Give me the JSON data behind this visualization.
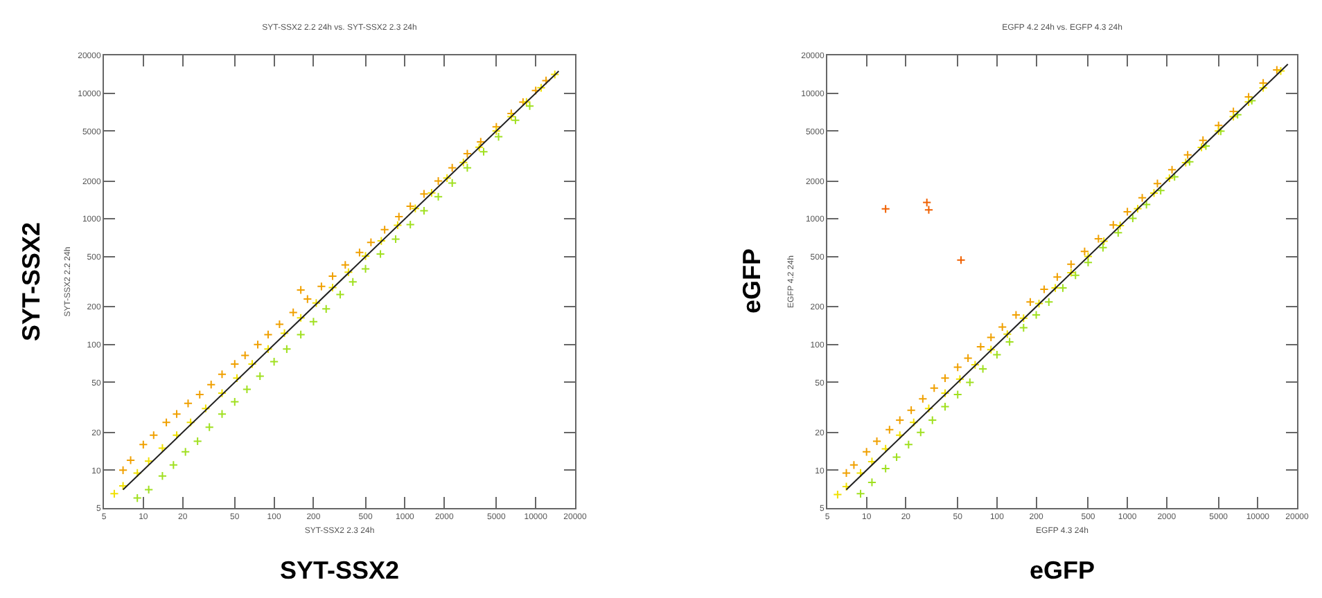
{
  "chart_data": [
    {
      "type": "scatter",
      "title": "SYT-SSX2 2.2 24h vs. SYT-SSX2 2.3 24h",
      "xlabel": "SYT-SSX2 2.3 24h",
      "ylabel": "SYT-SSX2 2.2 24h",
      "annotations": [
        "SYT-SSX2",
        "SYT-SSX2"
      ],
      "log": "xy",
      "grid": false,
      "marker": "cross",
      "xlim": [
        5,
        20000
      ],
      "ylim": [
        5,
        20000
      ],
      "xticks": [
        5,
        10,
        20,
        50,
        100,
        200,
        500,
        1000,
        2000,
        5000,
        10000,
        20000
      ],
      "yticks": [
        5,
        10,
        20,
        50,
        100,
        200,
        500,
        1000,
        2000,
        5000,
        10000,
        20000
      ],
      "series": [
        {
          "color": "#f0a000",
          "x": [
            7,
            8,
            10,
            12,
            15,
            18,
            22,
            27,
            33,
            40,
            50,
            60,
            75,
            90,
            110,
            140,
            160,
            180,
            230,
            280,
            350,
            450,
            550,
            700,
            900,
            1100,
            1400,
            1800,
            2300,
            3000,
            3800,
            5000,
            6500,
            8000,
            10000,
            12000
          ],
          "values": [
            10,
            12,
            16,
            19,
            24,
            28,
            34,
            40,
            48,
            58,
            70,
            82,
            100,
            120,
            145,
            180,
            272,
            230,
            290,
            350,
            430,
            540,
            650,
            820,
            1040,
            1260,
            1580,
            2000,
            2550,
            3300,
            4100,
            5400,
            6900,
            8500,
            10500,
            12600
          ]
        },
        {
          "color": "#f0e000",
          "x": [
            6,
            7,
            9,
            11,
            14,
            18,
            23,
            30,
            40,
            52,
            68,
            90,
            120,
            160,
            210,
            280,
            370,
            500,
            660,
            880,
            1200,
            1600,
            2100,
            2800,
            3700,
            5000,
            6500,
            8500,
            11000,
            14000
          ],
          "values": [
            6.5,
            7.5,
            9.5,
            11.8,
            15,
            19,
            24,
            31,
            41,
            54,
            70,
            92,
            123,
            163,
            214,
            284,
            376,
            506,
            668,
            890,
            1210,
            1610,
            2110,
            2810,
            3710,
            5010,
            6520,
            8520,
            11050,
            14100
          ]
        },
        {
          "color": "#a0e020",
          "x": [
            9,
            11,
            14,
            17,
            21,
            26,
            32,
            40,
            50,
            62,
            78,
            100,
            125,
            160,
            200,
            250,
            320,
            400,
            500,
            650,
            850,
            1100,
            1400,
            1800,
            2300,
            3000,
            4000,
            5200,
            7000,
            9000
          ],
          "values": [
            6,
            7,
            9,
            11,
            14,
            17,
            22,
            28,
            35,
            44,
            56,
            73,
            92,
            120,
            152,
            192,
            250,
            315,
            400,
            525,
            690,
            900,
            1160,
            1500,
            1930,
            2550,
            3420,
            4500,
            6100,
            7900
          ]
        },
        {
          "type": "line",
          "marker": "none",
          "color": "#202020",
          "x": [
            7,
            15000
          ],
          "values": [
            7,
            15000
          ]
        }
      ]
    },
    {
      "type": "scatter",
      "title": "EGFP 4.2 24h vs. EGFP 4.3 24h",
      "xlabel": "EGFP 4.3 24h",
      "ylabel": "EGFP 4.2 24h",
      "annotations": [
        "eGFP",
        "eGFP"
      ],
      "log": "xy",
      "grid": false,
      "marker": "cross",
      "xlim": [
        5,
        20000
      ],
      "ylim": [
        5,
        20000
      ],
      "xticks": [
        5,
        10,
        20,
        50,
        100,
        200,
        500,
        1000,
        2000,
        5000,
        10000,
        20000
      ],
      "yticks": [
        5,
        10,
        20,
        50,
        100,
        200,
        500,
        1000,
        2000,
        5000,
        10000,
        20000
      ],
      "series": [
        {
          "color": "#f0a000",
          "x": [
            7,
            8,
            10,
            12,
            15,
            18,
            22,
            27,
            33,
            40,
            50,
            60,
            75,
            90,
            110,
            140,
            180,
            230,
            290,
            370,
            470,
            600,
            780,
            1000,
            1300,
            1700,
            2200,
            2900,
            3800,
            5000,
            6500,
            8500,
            11000,
            14000
          ],
          "values": [
            9.5,
            11,
            14,
            17,
            21,
            25,
            30,
            37,
            45,
            54,
            66,
            78,
            96,
            114,
            138,
            172,
            218,
            275,
            345,
            435,
            550,
            695,
            895,
            1140,
            1470,
            1910,
            2460,
            3230,
            4220,
            5530,
            7160,
            9330,
            12050,
            15300
          ]
        },
        {
          "color": "#f06000",
          "x": [
            14,
            29,
            30,
            53
          ],
          "values": [
            1200,
            1350,
            1180,
            470
          ]
        },
        {
          "color": "#f0e000",
          "x": [
            6,
            7,
            9,
            11,
            14,
            18,
            23,
            30,
            40,
            52,
            68,
            90,
            120,
            160,
            210,
            280,
            370,
            500,
            660,
            880,
            1200,
            1600,
            2100,
            2800,
            3700,
            5000,
            6500,
            8500,
            11000,
            15000
          ],
          "values": [
            6.4,
            7.4,
            9.5,
            11.7,
            14.8,
            19,
            24,
            31,
            41,
            53,
            69,
            91,
            121,
            162,
            212,
            282,
            373,
            503,
            664,
            884,
            1205,
            1605,
            2105,
            2805,
            3705,
            5010,
            6510,
            8520,
            11020,
            15020
          ]
        },
        {
          "color": "#a0e020",
          "x": [
            9,
            11,
            14,
            17,
            21,
            26,
            32,
            40,
            50,
            62,
            78,
            100,
            125,
            160,
            200,
            250,
            320,
            400,
            500,
            650,
            850,
            1100,
            1400,
            1800,
            2300,
            3000,
            4000,
            5200,
            7000,
            9000
          ],
          "values": [
            6.5,
            8,
            10.3,
            12.7,
            16,
            20,
            25,
            32,
            40,
            50,
            64,
            83,
            105,
            136,
            172,
            218,
            282,
            356,
            450,
            590,
            775,
            1010,
            1300,
            1680,
            2160,
            2850,
            3800,
            4980,
            6750,
            8720
          ]
        },
        {
          "type": "line",
          "marker": "none",
          "color": "#202020",
          "x": [
            7,
            17000
          ],
          "values": [
            7,
            17000
          ]
        }
      ]
    }
  ]
}
